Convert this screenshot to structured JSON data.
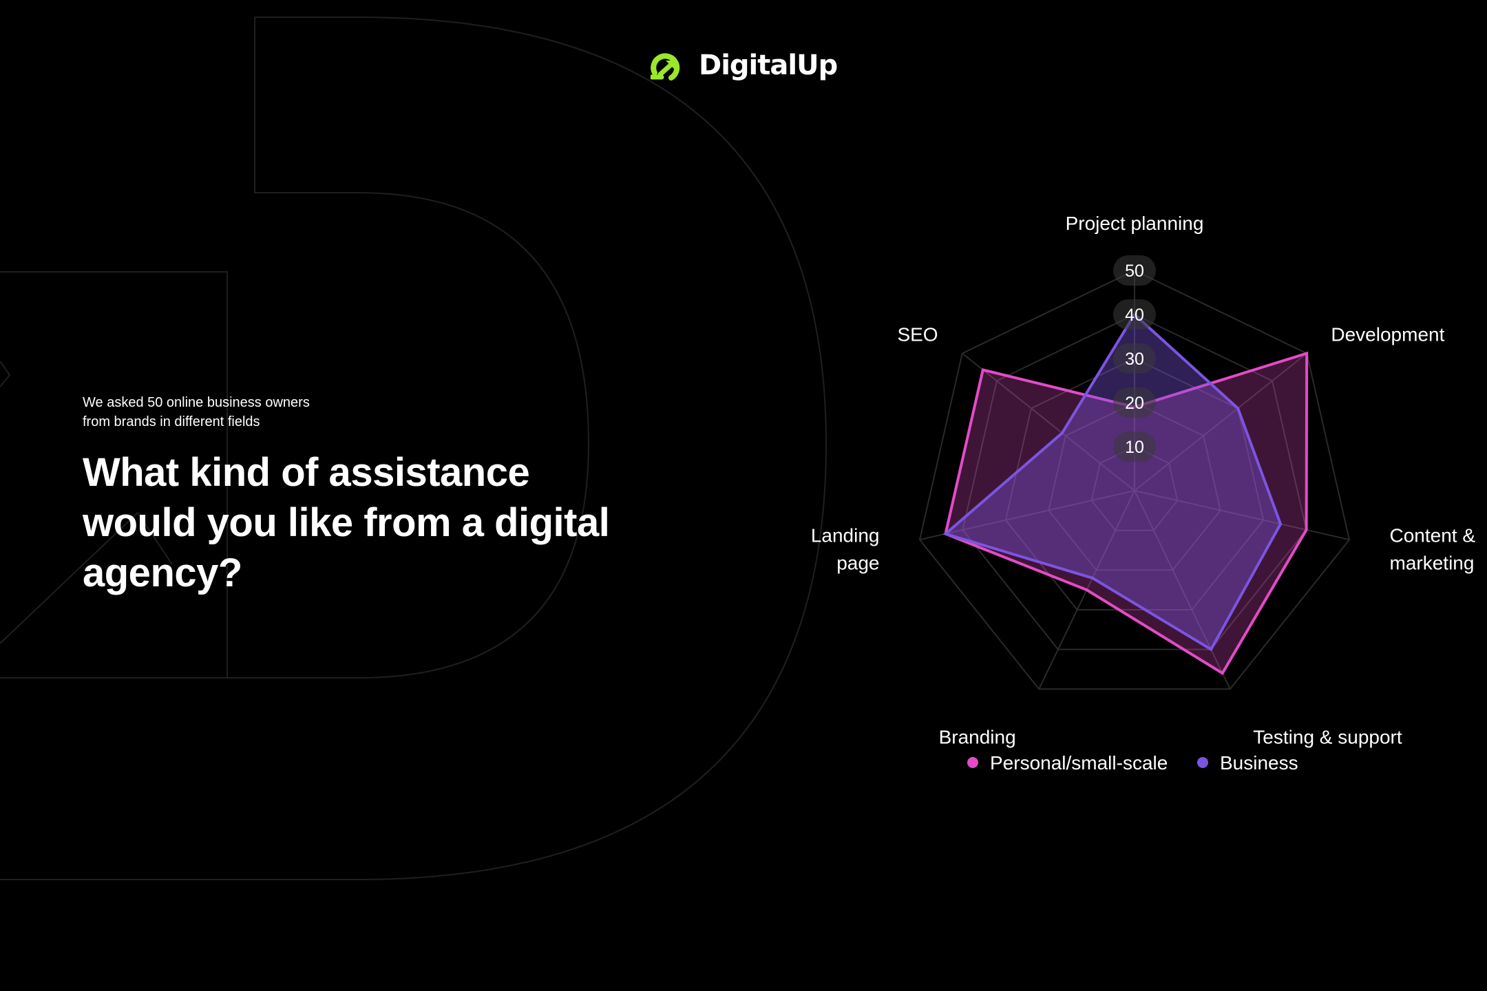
{
  "brand": {
    "name": "DigitalUp",
    "accent_color": "#9be82b"
  },
  "intro": {
    "line1": "We asked 50 online business owners",
    "line2": "from brands in different fields"
  },
  "headline": {
    "line1": "What kind of assistance",
    "line2": "would you like from a digital",
    "line3": "agency?"
  },
  "chart_data": {
    "type": "radar",
    "categories": [
      "Project planning",
      "Development",
      "Content & marketing",
      "Testing & support",
      "Branding",
      "Landing page",
      "SEO"
    ],
    "category_label_lines": [
      [
        "Project planning"
      ],
      [
        "Development"
      ],
      [
        "Content &",
        "marketing"
      ],
      [
        "Testing & support"
      ],
      [
        "Branding"
      ],
      [
        "Landing",
        "page"
      ],
      [
        "SEO"
      ]
    ],
    "series": [
      {
        "name": "Personal/small-scale",
        "values": [
          19,
          50,
          40,
          46,
          25,
          44,
          44
        ],
        "color": "#e34bc7"
      },
      {
        "name": "Business",
        "values": [
          40,
          30,
          34,
          40,
          22,
          44,
          21
        ],
        "color": "#7b55e0"
      }
    ],
    "range": [
      0,
      50
    ],
    "ticks": [
      10,
      20,
      30,
      40,
      50
    ],
    "tick_labels": [
      "10",
      "20",
      "30",
      "40",
      "50"
    ],
    "grid": true,
    "legend_position": "bottom"
  }
}
